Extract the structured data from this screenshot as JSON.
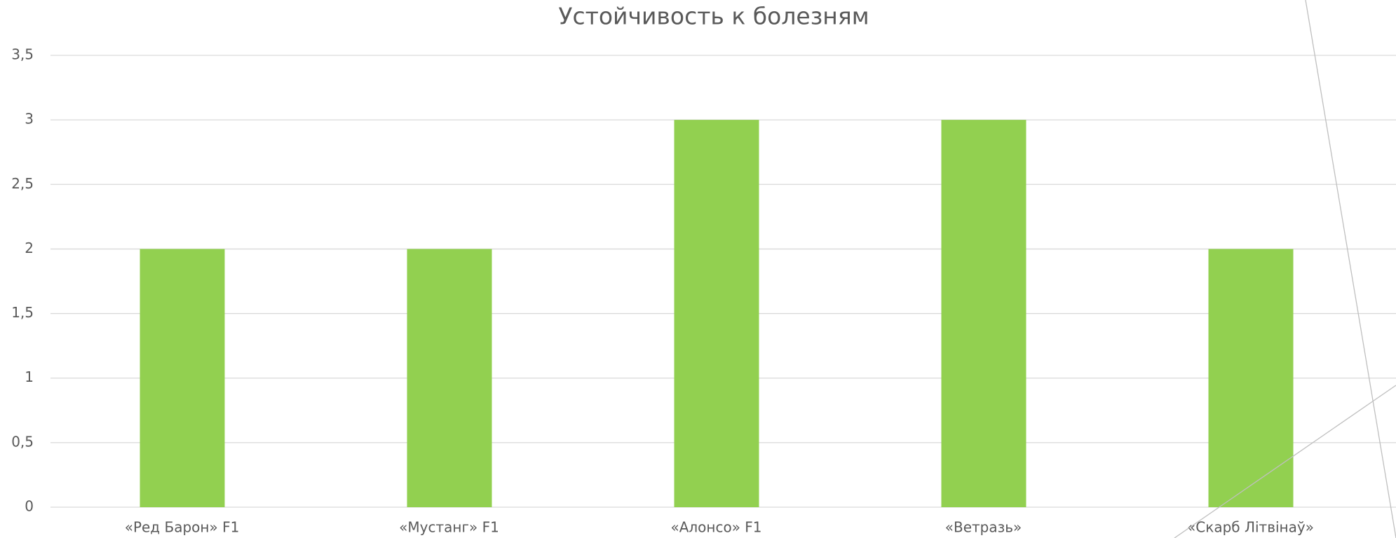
{
  "chart_data": {
    "type": "bar",
    "title": "Устойчивость к болезням",
    "categories": [
      "«Ред Барон» F1",
      "«Мустанг» F1",
      "«Алонсо» F1",
      "«Ветразь»",
      "«Скарб Літвінаў»"
    ],
    "values": [
      2,
      2,
      3,
      3,
      2
    ],
    "color": "#92d050",
    "ylim": [
      0,
      3.5
    ],
    "yticks": [
      0,
      {
        "value": 0.5,
        "label": "0,5"
      },
      1,
      {
        "value": 1.5,
        "label": "1,5"
      },
      2,
      {
        "value": 2.5,
        "label": "2,5"
      },
      3,
      {
        "value": 3.5,
        "label": "3,5"
      }
    ],
    "grid": true
  }
}
